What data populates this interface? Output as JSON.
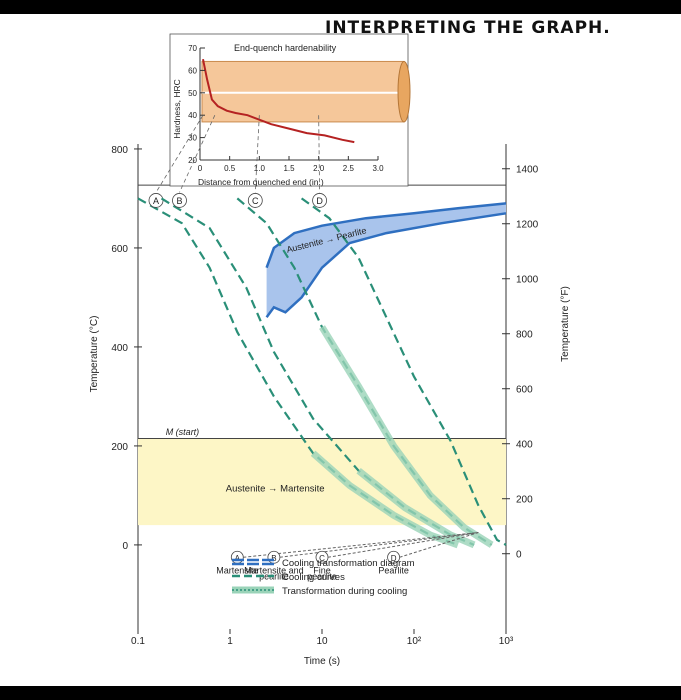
{
  "heading": "INTERPRETING THE GRAPH.",
  "colors": {
    "curve": "#2a8f78",
    "diagram": "#2f6fc0",
    "diagram_fill": "#a9c4ec",
    "band": "#fdf6c6",
    "rod": "#f5c79a",
    "hardness": "#b52222"
  },
  "chart_data": [
    {
      "type": "line",
      "title": "",
      "xlabel": "Time (s)",
      "ylabel": "Temperature (°C)",
      "ylabel_right": "Temperature (°F)",
      "x_scale": "log",
      "xlim": [
        0.1,
        1000
      ],
      "ylim": [
        -180,
        810
      ],
      "x_ticks": [
        "0.1",
        "1",
        "10",
        "10²",
        "10³"
      ],
      "y_ticks_left": [
        "0",
        "200",
        "400",
        "600",
        "800"
      ],
      "y_ticks_right": [
        "0",
        "200",
        "400",
        "600",
        "800",
        "1000",
        "1200",
        "1400"
      ],
      "series": [
        {
          "name": "A",
          "points": [
            [
              0.1,
              700
            ],
            [
              0.3,
              650
            ],
            [
              0.6,
              560
            ],
            [
              1.2,
              430
            ],
            [
              3,
              300
            ],
            [
              8,
              185
            ],
            [
              20,
              120
            ],
            [
              60,
              60
            ],
            [
              150,
              20
            ],
            [
              300,
              0
            ]
          ]
        },
        {
          "name": "B",
          "points": [
            [
              0.18,
              700
            ],
            [
              0.6,
              640
            ],
            [
              1.5,
              520
            ],
            [
              3,
              390
            ],
            [
              8,
              255
            ],
            [
              25,
              150
            ],
            [
              80,
              75
            ],
            [
              250,
              20
            ],
            [
              450,
              0
            ]
          ]
        },
        {
          "name": "C",
          "points": [
            [
              1.2,
              700
            ],
            [
              2.5,
              650
            ],
            [
              5,
              560
            ],
            [
              10,
              440
            ],
            [
              25,
              320
            ],
            [
              60,
              200
            ],
            [
              150,
              100
            ],
            [
              350,
              35
            ],
            [
              700,
              0
            ]
          ]
        },
        {
          "name": "D",
          "points": [
            [
              6,
              700
            ],
            [
              12,
              660
            ],
            [
              25,
              580
            ],
            [
              50,
              460
            ],
            [
              100,
              340
            ],
            [
              250,
              210
            ],
            [
              500,
              80
            ],
            [
              800,
              10
            ],
            [
              1000,
              0
            ]
          ]
        }
      ],
      "regions": {
        "austenite_pearlite": "Austenite → Pearlite",
        "austenite_martensite": "Austenite → Martensite",
        "m_start": "M (start)",
        "m_start_temp": 215,
        "eutectoid_temp": 727
      },
      "ttt_nose": {
        "start": [
          [
            2.5,
            560
          ],
          [
            3,
            600
          ],
          [
            5,
            630
          ],
          [
            10,
            645
          ],
          [
            30,
            660
          ],
          [
            100,
            670
          ],
          [
            300,
            680
          ],
          [
            1000,
            690
          ]
        ],
        "finish": [
          [
            2.5,
            460
          ],
          [
            3,
            480
          ],
          [
            4,
            470
          ],
          [
            6,
            500
          ],
          [
            10,
            560
          ],
          [
            20,
            610
          ],
          [
            50,
            630
          ],
          [
            200,
            650
          ],
          [
            1000,
            670
          ]
        ]
      },
      "outcomes": [
        {
          "id": "A",
          "label": "Martensite"
        },
        {
          "id": "B",
          "label": "Martensite and pearlite"
        },
        {
          "id": "C",
          "label": "Fine pearlite"
        },
        {
          "id": "D",
          "label": "Pearlite"
        }
      ],
      "legend": [
        {
          "key": "diagram",
          "label": "Cooling transformation diagram"
        },
        {
          "key": "curve",
          "label": "Cooling curves"
        },
        {
          "key": "transform",
          "label": "Transformation during cooling"
        }
      ],
      "legend_position": "bottom-center"
    },
    {
      "type": "line",
      "title": "End-quench hardenability",
      "xlabel": "Distance from quenched end (in.)",
      "ylabel": "Hardness, HRC",
      "xlim": [
        0,
        3.0
      ],
      "ylim": [
        20,
        70
      ],
      "x_ticks": [
        "0",
        "0.5",
        "1.0",
        "1.5",
        "2.0",
        "2.5",
        "3.0"
      ],
      "y_ticks": [
        "20",
        "30",
        "40",
        "50",
        "60",
        "70"
      ],
      "series": [
        {
          "name": "",
          "points": [
            [
              0.05,
              65
            ],
            [
              0.12,
              56
            ],
            [
              0.2,
              47
            ],
            [
              0.3,
              44
            ],
            [
              0.45,
              42
            ],
            [
              0.6,
              41
            ],
            [
              0.8,
              40
            ],
            [
              1.0,
              38
            ],
            [
              1.2,
              36
            ],
            [
              1.5,
              34
            ],
            [
              1.8,
              32
            ],
            [
              2.1,
              31
            ],
            [
              2.4,
              29
            ],
            [
              2.6,
              28
            ]
          ]
        }
      ],
      "markers": [
        {
          "id": "A",
          "x": 0.05
        },
        {
          "id": "B",
          "x": 0.25
        },
        {
          "id": "C",
          "x": 1.0
        },
        {
          "id": "D",
          "x": 2.0
        }
      ]
    }
  ]
}
